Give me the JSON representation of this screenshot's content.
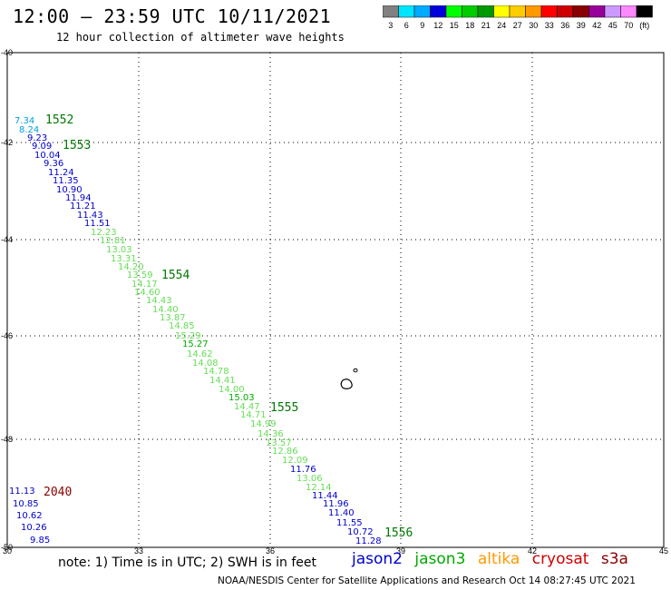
{
  "header": {
    "title": "12:00 – 23:59 UTC 10/11/2021",
    "subtitle": "12 hour collection of altimeter wave heights"
  },
  "legend": {
    "colors": [
      "#808080",
      "#00e5ff",
      "#00aaff",
      "#0000dd",
      "#00ff00",
      "#00cc00",
      "#009900",
      "#ffff00",
      "#ffcc00",
      "#ff9900",
      "#ff0000",
      "#cc0000",
      "#880000",
      "#990099",
      "#cc99ff",
      "#ff88ff",
      "#000000"
    ],
    "labels": [
      "3",
      "6",
      "9",
      "12",
      "15",
      "18",
      "21",
      "24",
      "27",
      "30",
      "33",
      "36",
      "39",
      "42",
      "45",
      "70",
      "(ft)"
    ]
  },
  "axes": {
    "lon_labels": [
      "30",
      "33",
      "36",
      "39",
      "42",
      "45"
    ],
    "lat_labels": [
      "-40",
      "-42",
      "-44",
      "-46",
      "-48",
      "-50"
    ]
  },
  "colors": {
    "jason2": "#0000cc",
    "jason3": "#00aa00",
    "jason3_light": "#66dd55",
    "cyan": "#00a0e0",
    "altika": "#ff9900",
    "cryosat": "#cc0000",
    "s3a": "#880000",
    "time_green": "#007700"
  },
  "times": [
    {
      "text": "1552",
      "color": "#007700"
    },
    {
      "text": "1553",
      "color": "#007700"
    },
    {
      "text": "1554",
      "color": "#007700"
    },
    {
      "text": "1555",
      "color": "#007700"
    },
    {
      "text": "1556",
      "color": "#007700"
    },
    {
      "text": "2040",
      "color": "#880000"
    }
  ],
  "readings": [
    {
      "v": "7.34",
      "c": "#00a0e0"
    },
    {
      "v": "8.24",
      "c": "#00a0e0"
    },
    {
      "v": "9.23",
      "c": "#0000cc"
    },
    {
      "v": "9.09",
      "c": "#0000cc"
    },
    {
      "v": "10.04",
      "c": "#0000cc"
    },
    {
      "v": "9.36",
      "c": "#0000cc"
    },
    {
      "v": "11.24",
      "c": "#0000cc"
    },
    {
      "v": "11.35",
      "c": "#0000cc"
    },
    {
      "v": "10.90",
      "c": "#0000cc"
    },
    {
      "v": "11.94",
      "c": "#0000cc"
    },
    {
      "v": "11.21",
      "c": "#0000cc"
    },
    {
      "v": "11.43",
      "c": "#0000cc"
    },
    {
      "v": "11.51",
      "c": "#0000cc"
    },
    {
      "v": "12.23",
      "c": "#66dd55"
    },
    {
      "v": "12.81",
      "c": "#66dd55"
    },
    {
      "v": "13.03",
      "c": "#66dd55"
    },
    {
      "v": "13.31",
      "c": "#66dd55"
    },
    {
      "v": "14.20",
      "c": "#66dd55"
    },
    {
      "v": "13.59",
      "c": "#66dd55"
    },
    {
      "v": "14.17",
      "c": "#66dd55"
    },
    {
      "v": "14.60",
      "c": "#66dd55"
    },
    {
      "v": "14.43",
      "c": "#66dd55"
    },
    {
      "v": "14.40",
      "c": "#66dd55"
    },
    {
      "v": "13.87",
      "c": "#66dd55"
    },
    {
      "v": "14.85",
      "c": "#66dd55"
    },
    {
      "v": "15.29",
      "c": "#66dd55"
    },
    {
      "v": "15.27",
      "c": "#00aa00"
    },
    {
      "v": "14.62",
      "c": "#66dd55"
    },
    {
      "v": "14.08",
      "c": "#66dd55"
    },
    {
      "v": "14.78",
      "c": "#66dd55"
    },
    {
      "v": "14.41",
      "c": "#66dd55"
    },
    {
      "v": "14.00",
      "c": "#66dd55"
    },
    {
      "v": "15.03",
      "c": "#00aa00"
    },
    {
      "v": "14.47",
      "c": "#66dd55"
    },
    {
      "v": "14.71",
      "c": "#66dd55"
    },
    {
      "v": "14.99",
      "c": "#66dd55"
    },
    {
      "v": "14.36",
      "c": "#66dd55"
    },
    {
      "v": "13.57",
      "c": "#66dd55"
    },
    {
      "v": "12.86",
      "c": "#66dd55"
    },
    {
      "v": "12.09",
      "c": "#66dd55"
    },
    {
      "v": "11.76",
      "c": "#0000cc"
    },
    {
      "v": "13.06",
      "c": "#66dd55"
    },
    {
      "v": "12.14",
      "c": "#66dd55"
    },
    {
      "v": "11.44",
      "c": "#0000cc"
    },
    {
      "v": "11.96",
      "c": "#0000cc"
    },
    {
      "v": "11.40",
      "c": "#0000cc"
    },
    {
      "v": "11.55",
      "c": "#0000cc"
    },
    {
      "v": "10.72",
      "c": "#0000cc"
    },
    {
      "v": "11.28",
      "c": "#0000cc"
    },
    {
      "v": "11.13",
      "c": "#0000cc"
    },
    {
      "v": "10.85",
      "c": "#0000cc"
    },
    {
      "v": "10.62",
      "c": "#0000cc"
    },
    {
      "v": "10.26",
      "c": "#0000cc"
    },
    {
      "v": "9.85",
      "c": "#0000cc"
    }
  ],
  "footer": {
    "note": "note:  1) Time is in UTC;  2) SWH is in feet",
    "satellites": [
      "jason2",
      "jason3",
      "altika",
      "cryosat",
      "s3a"
    ],
    "credit": "NOAA/NESDIS Center for Satellite Applications and Research    Oct 14 08:27:45 UTC 2021"
  }
}
